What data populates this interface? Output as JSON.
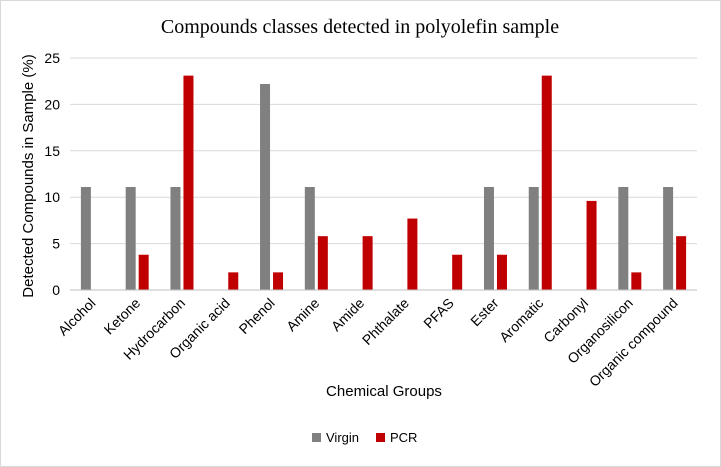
{
  "chart_data": {
    "type": "bar",
    "title": "Compounds  classes detected in polyolefin sample",
    "xlabel": "Chemical Groups",
    "ylabel": "Detected Compounds in Sample (%)",
    "ylim": [
      0,
      25
    ],
    "yticks": [
      "0",
      "5",
      "10",
      "15",
      "20",
      "25"
    ],
    "grid": true,
    "legend_position": "bottom",
    "categories": [
      "Alcohol",
      "Ketone",
      "Hydrocarbon",
      "Organic acid",
      "Phenol",
      "Amine",
      "Amide",
      "Phthalate",
      "PFAS",
      "Ester",
      "Aromatic",
      "Carbonyl",
      "Organosilicon",
      "Organic compound"
    ],
    "series": [
      {
        "name": "Virgin",
        "color": "#808080",
        "values": [
          11.1,
          11.1,
          11.1,
          0,
          22.2,
          11.1,
          0,
          0,
          0,
          11.1,
          11.1,
          0,
          11.1,
          11.1
        ]
      },
      {
        "name": "PCR",
        "color": "#c00000",
        "values": [
          0,
          3.8,
          23.1,
          1.9,
          1.9,
          5.8,
          5.8,
          7.7,
          3.8,
          3.8,
          23.1,
          9.6,
          1.9,
          5.8
        ]
      }
    ]
  }
}
